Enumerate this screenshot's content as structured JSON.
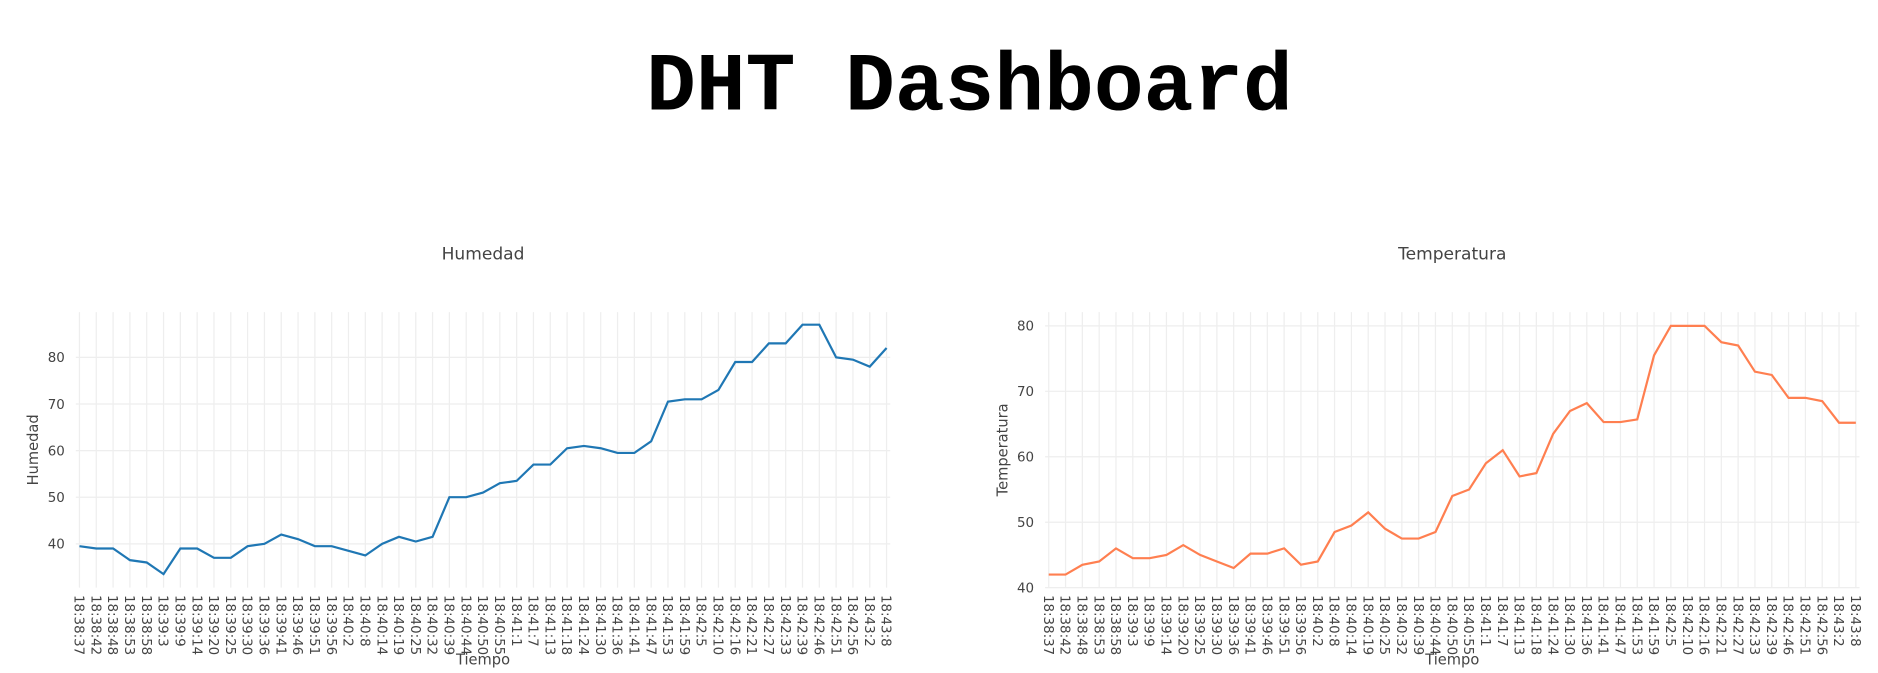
{
  "title": "DHT Dashboard",
  "chart_data": [
    {
      "type": "line",
      "title": "Humedad",
      "x_label": "Tiempo",
      "y_label": "Humedad",
      "categories": [
        "18:38:37",
        "18:38:42",
        "18:38:48",
        "18:38:53",
        "18:38:58",
        "18:39:3",
        "18:39:9",
        "18:39:14",
        "18:39:20",
        "18:39:25",
        "18:39:30",
        "18:39:36",
        "18:39:41",
        "18:39:46",
        "18:39:51",
        "18:39:56",
        "18:40:2",
        "18:40:8",
        "18:40:14",
        "18:40:19",
        "18:40:25",
        "18:40:32",
        "18:40:39",
        "18:40:44",
        "18:40:50",
        "18:40:55",
        "18:41:1",
        "18:41:7",
        "18:41:13",
        "18:41:18",
        "18:41:24",
        "18:41:30",
        "18:41:36",
        "18:41:41",
        "18:41:47",
        "18:41:53",
        "18:41:59",
        "18:42:5",
        "18:42:10",
        "18:42:16",
        "18:42:21",
        "18:42:27",
        "18:42:33",
        "18:42:39",
        "18:42:46",
        "18:42:51",
        "18:42:56",
        "18:43:2",
        "18:43:8"
      ],
      "series": [
        {
          "name": "Humedad",
          "color": "#1f77b4",
          "values": [
            39.5,
            39,
            39,
            36.5,
            36,
            33.5,
            39,
            39,
            37,
            37,
            39.5,
            40,
            42,
            41,
            39.5,
            39.5,
            38.5,
            37.5,
            40,
            41.5,
            40.5,
            41.5,
            50,
            50,
            51,
            53,
            53.5,
            57,
            57,
            60.5,
            61,
            60.5,
            59.5,
            59.5,
            62,
            70.5,
            71,
            71,
            73,
            79,
            79,
            83,
            83,
            87,
            87,
            80,
            79.5,
            78,
            82
          ]
        }
      ],
      "ylim": [
        30.6,
        89.7
      ],
      "yticks": [
        40,
        50,
        60,
        70,
        80
      ],
      "grid": true
    },
    {
      "type": "line",
      "title": "Temperatura",
      "x_label": "Tiempo",
      "y_label": "Temperatura",
      "categories": [
        "18:38:37",
        "18:38:42",
        "18:38:48",
        "18:38:53",
        "18:38:58",
        "18:39:3",
        "18:39:9",
        "18:39:14",
        "18:39:20",
        "18:39:25",
        "18:39:30",
        "18:39:36",
        "18:39:41",
        "18:39:46",
        "18:39:51",
        "18:39:56",
        "18:40:2",
        "18:40:8",
        "18:40:14",
        "18:40:19",
        "18:40:25",
        "18:40:32",
        "18:40:39",
        "18:40:44",
        "18:40:50",
        "18:40:55",
        "18:41:1",
        "18:41:7",
        "18:41:13",
        "18:41:18",
        "18:41:24",
        "18:41:30",
        "18:41:36",
        "18:41:41",
        "18:41:47",
        "18:41:53",
        "18:41:59",
        "18:42:5",
        "18:42:10",
        "18:42:16",
        "18:42:21",
        "18:42:27",
        "18:42:33",
        "18:42:39",
        "18:42:46",
        "18:42:51",
        "18:42:56",
        "18:43:2",
        "18:43:8"
      ],
      "series": [
        {
          "name": "Temperatura",
          "color": "#ff7f50",
          "values": [
            42,
            42,
            43.5,
            44,
            46,
            44.5,
            44.5,
            45,
            46.5,
            45,
            44,
            43,
            45.2,
            45.2,
            46,
            43.5,
            44,
            48.5,
            49.5,
            51.5,
            49,
            47.5,
            47.5,
            48.5,
            54,
            55,
            59,
            61,
            57,
            57.5,
            63.5,
            67,
            68.2,
            65.3,
            65.3,
            65.7,
            75.5,
            80,
            80,
            80,
            77.5,
            77,
            73,
            72.5,
            69,
            69,
            68.5,
            65.2,
            65.2
          ]
        }
      ],
      "ylim": [
        40,
        82.1
      ],
      "yticks": [
        40,
        50,
        60,
        70,
        80
      ],
      "grid": true
    }
  ]
}
